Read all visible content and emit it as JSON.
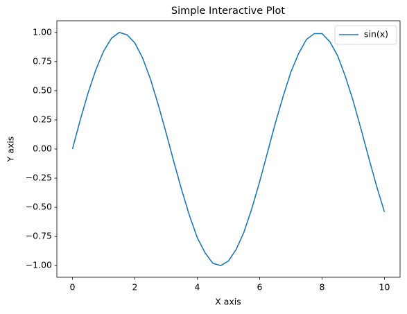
{
  "chart_data": {
    "type": "line",
    "title": "Simple Interactive Plot",
    "xlabel": "X axis",
    "ylabel": "Y axis",
    "x": [
      0,
      0.25,
      0.5,
      0.75,
      1,
      1.25,
      1.5,
      1.75,
      2,
      2.25,
      2.5,
      2.75,
      3,
      3.25,
      3.5,
      3.75,
      4,
      4.25,
      4.5,
      4.75,
      5,
      5.25,
      5.5,
      5.75,
      6,
      6.25,
      6.5,
      6.75,
      7,
      7.25,
      7.5,
      7.75,
      8,
      8.25,
      8.5,
      8.75,
      9,
      9.25,
      9.5,
      9.75,
      10
    ],
    "series": [
      {
        "name": "sin(x)",
        "color": "#1f77b4",
        "values": [
          0,
          0.25,
          0.48,
          0.68,
          0.84,
          0.95,
          1.0,
          0.98,
          0.91,
          0.78,
          0.6,
          0.38,
          0.14,
          -0.11,
          -0.35,
          -0.57,
          -0.76,
          -0.89,
          -0.98,
          -1.0,
          -0.96,
          -0.86,
          -0.71,
          -0.51,
          -0.28,
          -0.03,
          0.22,
          0.45,
          0.66,
          0.82,
          0.94,
          0.99,
          0.99,
          0.92,
          0.8,
          0.62,
          0.41,
          0.17,
          -0.08,
          -0.32,
          -0.54
        ]
      }
    ],
    "xlim": [
      -0.5,
      10.5
    ],
    "xticks": [
      0,
      2,
      4,
      6,
      8,
      10
    ],
    "ylim": [
      -1.1,
      1.1
    ],
    "yticks": [
      {
        "value": -1,
        "label": "−1.00"
      },
      {
        "value": -0.75,
        "label": "−0.75"
      },
      {
        "value": -0.5,
        "label": "−0.50"
      },
      {
        "value": -0.25,
        "label": "−0.25"
      },
      {
        "value": 0,
        "label": "0.00"
      },
      {
        "value": 0.25,
        "label": "0.25"
      },
      {
        "value": 0.5,
        "label": "0.50"
      },
      {
        "value": 0.75,
        "label": "0.75"
      },
      {
        "value": 1,
        "label": "1.00"
      }
    ],
    "grid": false,
    "legend": "upper right"
  }
}
